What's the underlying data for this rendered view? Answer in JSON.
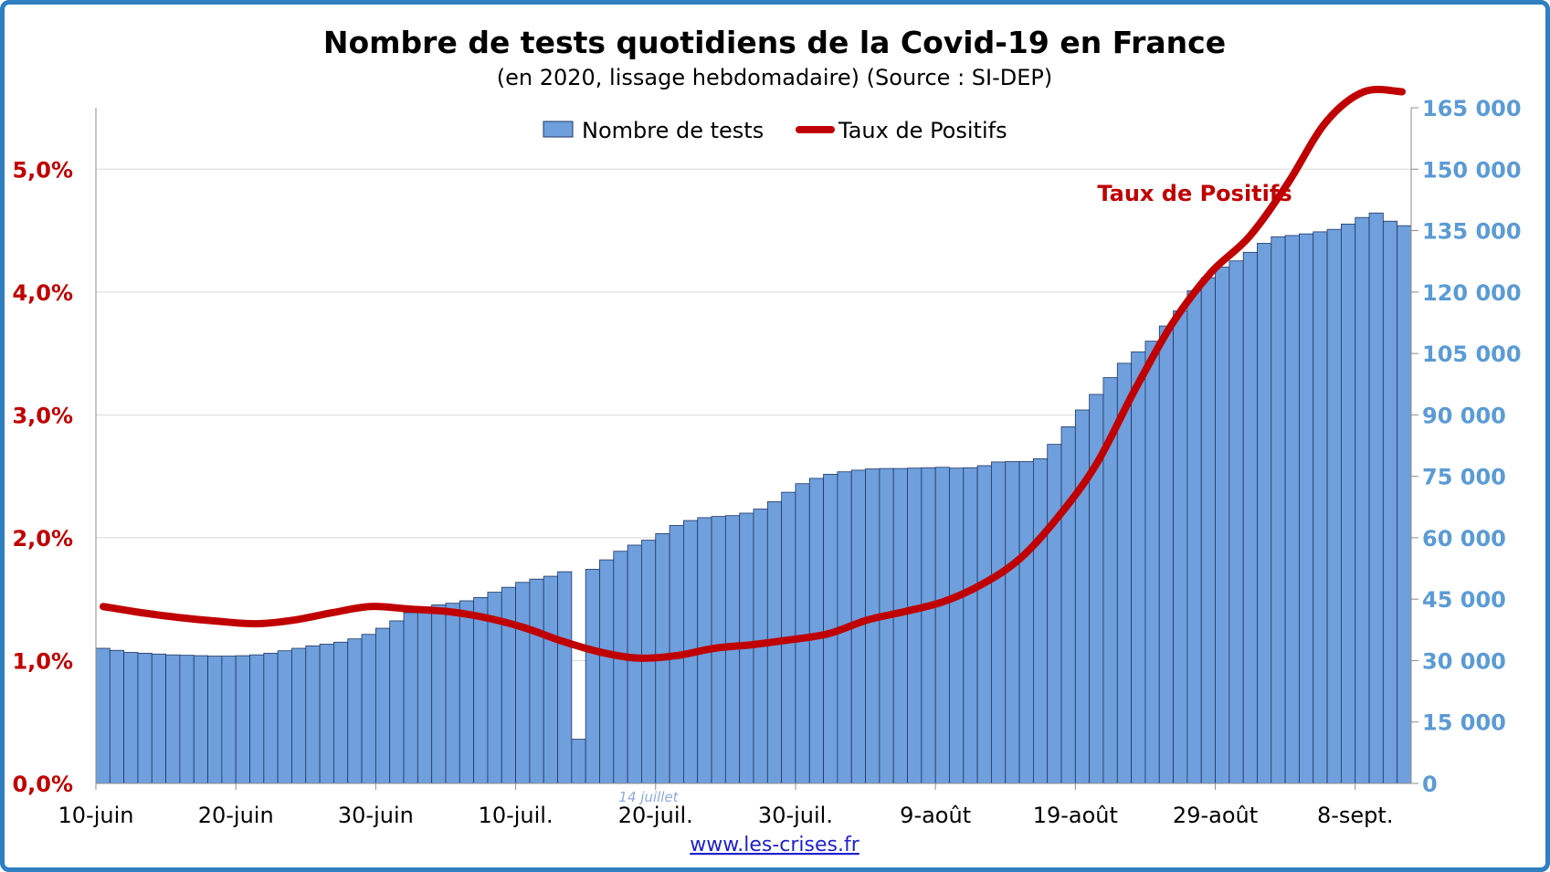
{
  "chart_data": {
    "type": "bar",
    "title": "Nombre de tests quotidiens de la Covid-19 en France",
    "subtitle": "(en 2020, lissage hebdomadaire) (Source : SI-DEP)",
    "x_tick_labels": [
      "10-juin",
      "20-juin",
      "30-juin",
      "10-juil.",
      "20-juil.",
      "30-juil.",
      "9-août",
      "19-août",
      "29-août",
      "8-sept."
    ],
    "x_start": "10-juin",
    "y_left": {
      "ticks": [
        "0,0%",
        "1,0%",
        "2,0%",
        "3,0%",
        "4,0%",
        "5,0%"
      ],
      "range": [
        0,
        5.5
      ],
      "unit": "%"
    },
    "y_right": {
      "ticks": [
        "0",
        "15 000",
        "30 000",
        "45 000",
        "60 000",
        "75 000",
        "90 000",
        "105 000",
        "120 000",
        "135 000",
        "150 000",
        "165 000"
      ],
      "range": [
        0,
        165000
      ]
    },
    "grid": true,
    "legend_position": "top-center",
    "legend": [
      {
        "label": "Nombre de tests",
        "color": "#6f9fdc"
      },
      {
        "label": "Taux de Positifs",
        "color": "#c00000"
      }
    ],
    "series": [
      {
        "name": "Nombre de tests",
        "type": "bar",
        "axis": "right",
        "color": "#6f9fdc",
        "values": [
          33000,
          32500,
          32000,
          31800,
          31600,
          31400,
          31300,
          31200,
          31100,
          31100,
          31200,
          31400,
          31800,
          32400,
          33000,
          33600,
          34000,
          34500,
          35300,
          36400,
          37900,
          39700,
          41700,
          43100,
          43600,
          44000,
          44600,
          45400,
          46700,
          47900,
          49100,
          49900,
          50600,
          51700,
          10800,
          52300,
          54600,
          56700,
          58200,
          59400,
          61000,
          63000,
          64200,
          64900,
          65200,
          65400,
          66000,
          67000,
          68800,
          71100,
          73200,
          74500,
          75500,
          76100,
          76500,
          76800,
          76900,
          76900,
          77000,
          77100,
          77200,
          77000,
          77100,
          77600,
          78500,
          78600,
          78600,
          79300,
          82800,
          87100,
          91200,
          95000,
          99100,
          102600,
          105400,
          108000,
          111700,
          115400,
          120300,
          123500,
          126100,
          127600,
          129700,
          131900,
          133500,
          133800,
          134200,
          134700,
          135300,
          136600,
          138200,
          139300,
          137300,
          136200
        ]
      },
      {
        "name": "Taux de Positifs",
        "type": "line",
        "axis": "left",
        "color": "#c00000",
        "values": [
          1.44,
          1.39,
          1.35,
          1.32,
          1.3,
          1.33,
          1.39,
          1.44,
          1.42,
          1.4,
          1.35,
          1.27,
          1.16,
          1.07,
          1.02,
          1.04,
          1.1,
          1.13,
          1.17,
          1.22,
          1.33,
          1.4,
          1.48,
          1.62,
          1.83,
          2.17,
          2.6,
          3.2,
          3.75,
          4.16,
          4.45,
          4.88,
          5.38,
          5.63,
          5.63
        ]
      }
    ],
    "annotations": [
      {
        "text": "Taux de Positifs"
      },
      {
        "text": "14 juillet"
      }
    ],
    "credit": "www.les-crises.fr"
  }
}
